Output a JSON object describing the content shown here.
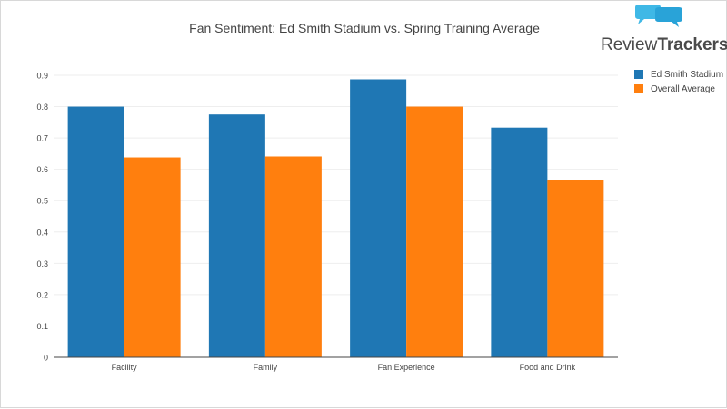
{
  "brand": {
    "name_part1": "Review",
    "name_part2": "Trackers"
  },
  "chart_data": {
    "type": "bar",
    "title": "Fan Sentiment: Ed Smith Stadium vs. Spring Training Average",
    "categories": [
      "Facility",
      "Family",
      "Fan Experience",
      "Food and Drink"
    ],
    "series": [
      {
        "name": "Ed Smith Stadium",
        "color": "#1f77b4",
        "values": [
          0.8,
          0.775,
          0.887,
          0.733
        ]
      },
      {
        "name": "Overall Average",
        "color": "#ff7f0e",
        "values": [
          0.638,
          0.641,
          0.8,
          0.565
        ]
      }
    ],
    "ylim": [
      0,
      0.9
    ],
    "yticks": [
      "0",
      "0.1",
      "0.2",
      "0.3",
      "0.4",
      "0.5",
      "0.6",
      "0.7",
      "0.8",
      "0.9"
    ],
    "xlabel": "",
    "ylabel": "",
    "grid": true,
    "legend_position": "top-right"
  }
}
